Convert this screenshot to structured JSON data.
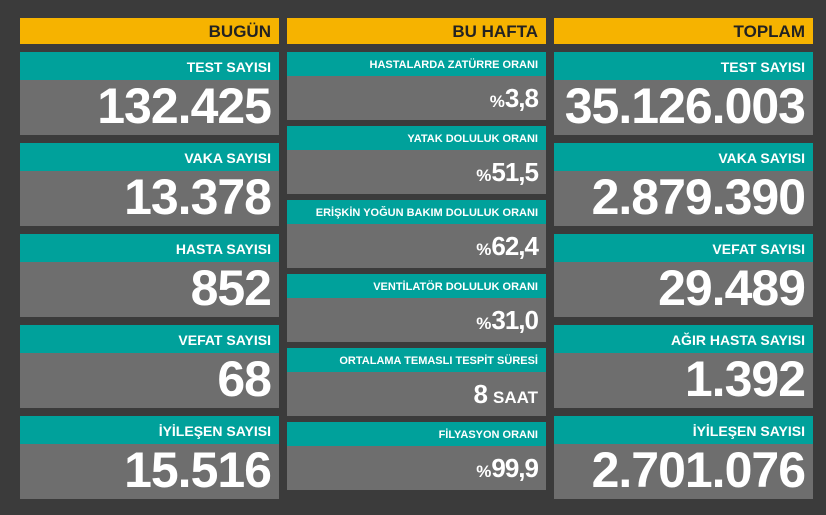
{
  "columns": [
    {
      "title": "BUGÜN",
      "items": [
        {
          "label": "TEST SAYISI",
          "value": "132.425"
        },
        {
          "label": "VAKA SAYISI",
          "value": "13.378"
        },
        {
          "label": "HASTA SAYISI",
          "value": "852"
        },
        {
          "label": "VEFAT SAYISI",
          "value": "68"
        },
        {
          "label": "İYİLEŞEN SAYISI",
          "value": "15.516"
        }
      ]
    },
    {
      "title": "BU HAFTA",
      "items": [
        {
          "label": "HASTALARDA ZATÜRRE ORANI",
          "prefix": "%",
          "value": "3,8"
        },
        {
          "label": "YATAK DOLULUK ORANI",
          "prefix": "%",
          "value": "51,5"
        },
        {
          "label": "ERİŞKİN YOĞUN BAKIM DOLULUK ORANI",
          "prefix": "%",
          "value": "62,4"
        },
        {
          "label": "VENTİLATÖR DOLULUK ORANI",
          "prefix": "%",
          "value": "31,0"
        },
        {
          "label": "ORTALAMA TEMASLI TESPİT SÜRESİ",
          "value": "8",
          "suffix": "SAAT"
        },
        {
          "label": "FİLYASYON ORANI",
          "prefix": "%",
          "value": "99,9"
        }
      ]
    },
    {
      "title": "TOPLAM",
      "items": [
        {
          "label": "TEST SAYISI",
          "value": "35.126.003"
        },
        {
          "label": "VAKA SAYISI",
          "value": "2.879.390"
        },
        {
          "label": "VEFAT SAYISI",
          "value": "29.489"
        },
        {
          "label": "AĞIR HASTA SAYISI",
          "value": "1.392"
        },
        {
          "label": "İYİLEŞEN SAYISI",
          "value": "2.701.076"
        }
      ]
    }
  ]
}
